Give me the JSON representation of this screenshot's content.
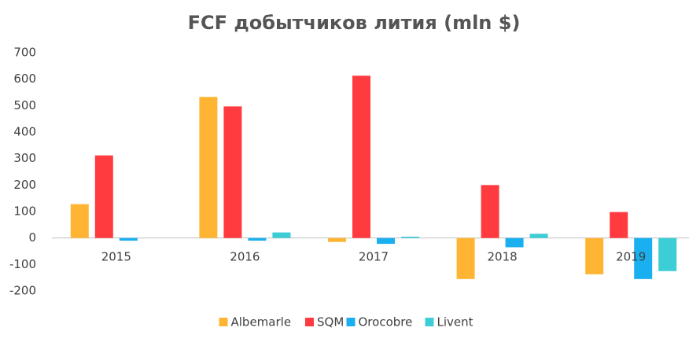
{
  "chart_data": {
    "type": "bar",
    "title": "FCF добытчиков лития (mln $)",
    "categories": [
      "2015",
      "2016",
      "2017",
      "2018",
      "2019"
    ],
    "series": [
      {
        "name": "Albemarle",
        "color": "#FFB533",
        "values": [
          128,
          533,
          -15,
          -155,
          -137
        ]
      },
      {
        "name": "SQM",
        "color": "#FF3B3F",
        "values": [
          312,
          497,
          613,
          200,
          98
        ]
      },
      {
        "name": "Orocobre",
        "color": "#1AAFEF",
        "values": [
          -10,
          -10,
          -22,
          -35,
          -155
        ]
      },
      {
        "name": "Livent",
        "color": "#3CCDD6",
        "values": [
          null,
          21,
          5,
          16,
          -125
        ]
      }
    ],
    "ylim": [
      -200,
      700
    ],
    "yticks": [
      -200,
      -100,
      0,
      100,
      200,
      300,
      400,
      500,
      600,
      700
    ],
    "grid": false,
    "legend": "bottom"
  }
}
